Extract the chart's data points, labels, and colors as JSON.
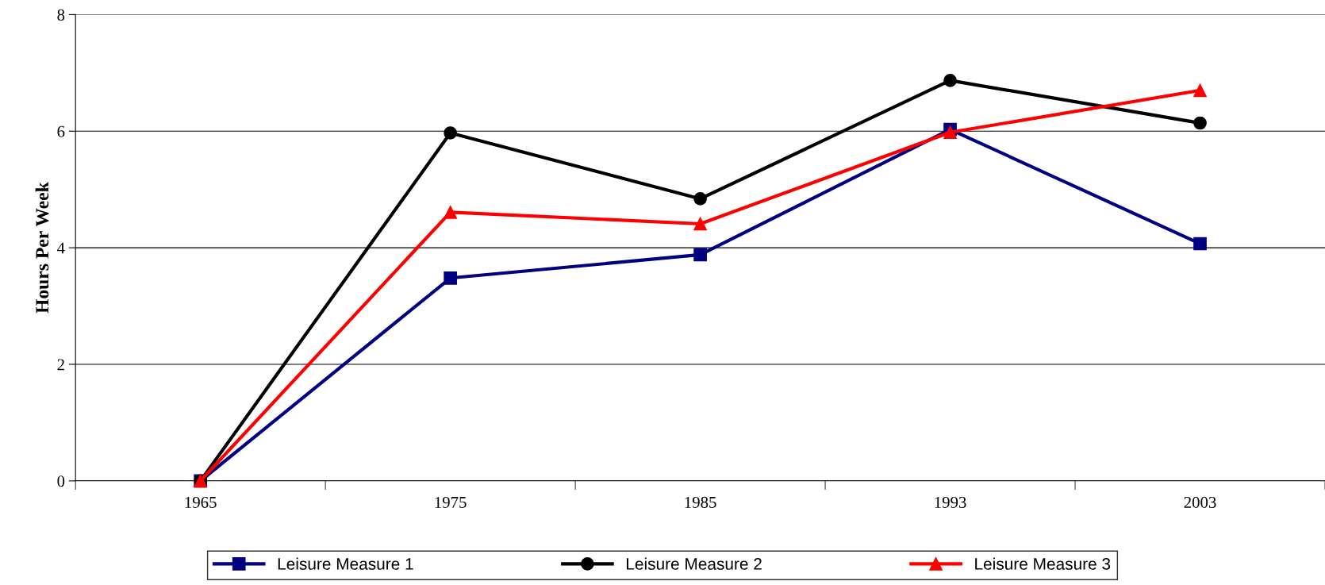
{
  "chart_data": {
    "type": "line",
    "ylabel": "Hours Per Week",
    "categories": [
      "1965",
      "1975",
      "1985",
      "1993",
      "2003"
    ],
    "series": [
      {
        "name": "Leisure Measure 1",
        "color": "#000080",
        "marker": "square",
        "values": [
          0,
          3.48,
          3.88,
          6.03,
          4.07
        ]
      },
      {
        "name": "Leisure Measure 2",
        "color": "#000000",
        "marker": "circle",
        "values": [
          0,
          5.97,
          4.84,
          6.87,
          6.14
        ]
      },
      {
        "name": "Leisure Measure 3",
        "color": "#ff0000",
        "marker": "triangle",
        "values": [
          0,
          4.61,
          4.41,
          5.98,
          6.7
        ]
      }
    ],
    "ylim": [
      0,
      8
    ],
    "yticks": [
      0,
      2,
      4,
      6,
      8
    ],
    "grid": "y",
    "legend": "bottom",
    "line_style": "solid"
  }
}
